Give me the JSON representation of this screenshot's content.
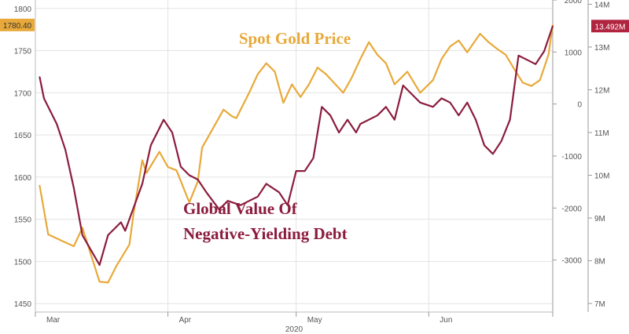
{
  "chart_data": {
    "type": "line",
    "x_range": [
      "2020-03-01",
      "2020-06-30"
    ],
    "x_ticks": [
      "Mar",
      "Apr",
      "May",
      "Jun"
    ],
    "x_year_label": "2020",
    "axes": {
      "left": {
        "min": 1440,
        "max": 1810,
        "ticks": [
          "1800",
          "1750",
          "1700",
          "1650",
          "1600",
          "1550",
          "1500",
          "1450"
        ]
      },
      "mid": {
        "min": -4000,
        "max": 2000,
        "ticks": [
          "2000",
          "1000",
          "0",
          "-1000",
          "-2000",
          "-3000"
        ]
      },
      "right": {
        "min": 6.8,
        "max": 14.1,
        "ticks": [
          "14M",
          "13M",
          "12M",
          "11M",
          "10M",
          "9M",
          "8M",
          "7M"
        ]
      }
    },
    "grid": true,
    "last_value_badges": {
      "gold": "1780.40",
      "debt": "13.492M"
    },
    "series": [
      {
        "name": "Spot Gold Price",
        "axis": "left",
        "color": "#e8a93a",
        "points": [
          [
            "2020-03-02",
            1590
          ],
          [
            "2020-03-04",
            1532
          ],
          [
            "2020-03-07",
            1525
          ],
          [
            "2020-03-10",
            1518
          ],
          [
            "2020-03-12",
            1540
          ],
          [
            "2020-03-16",
            1476
          ],
          [
            "2020-03-18",
            1475
          ],
          [
            "2020-03-20",
            1495
          ],
          [
            "2020-03-23",
            1520
          ],
          [
            "2020-03-24",
            1558
          ],
          [
            "2020-03-26",
            1620
          ],
          [
            "2020-03-27",
            1605
          ],
          [
            "2020-03-30",
            1630
          ],
          [
            "2020-04-01",
            1612
          ],
          [
            "2020-04-03",
            1608
          ],
          [
            "2020-04-06",
            1570
          ],
          [
            "2020-04-08",
            1595
          ],
          [
            "2020-04-09",
            1635
          ],
          [
            "2020-04-14",
            1680
          ],
          [
            "2020-04-16",
            1672
          ],
          [
            "2020-04-17",
            1670
          ],
          [
            "2020-04-20",
            1700
          ],
          [
            "2020-04-22",
            1722
          ],
          [
            "2020-04-24",
            1735
          ],
          [
            "2020-04-26",
            1725
          ],
          [
            "2020-04-28",
            1688
          ],
          [
            "2020-04-30",
            1710
          ],
          [
            "2020-05-02",
            1695
          ],
          [
            "2020-05-04",
            1710
          ],
          [
            "2020-05-06",
            1730
          ],
          [
            "2020-05-08",
            1722
          ],
          [
            "2020-05-12",
            1700
          ],
          [
            "2020-05-14",
            1718
          ],
          [
            "2020-05-16",
            1740
          ],
          [
            "2020-05-18",
            1760
          ],
          [
            "2020-05-20",
            1745
          ],
          [
            "2020-05-22",
            1735
          ],
          [
            "2020-05-24",
            1710
          ],
          [
            "2020-05-27",
            1725
          ],
          [
            "2020-05-30",
            1700
          ],
          [
            "2020-06-02",
            1715
          ],
          [
            "2020-06-04",
            1740
          ],
          [
            "2020-06-06",
            1755
          ],
          [
            "2020-06-08",
            1762
          ],
          [
            "2020-06-10",
            1748
          ],
          [
            "2020-06-13",
            1770
          ],
          [
            "2020-06-15",
            1760
          ],
          [
            "2020-06-17",
            1752
          ],
          [
            "2020-06-19",
            1745
          ],
          [
            "2020-06-21",
            1728
          ],
          [
            "2020-06-23",
            1712
          ],
          [
            "2020-06-25",
            1708
          ],
          [
            "2020-06-27",
            1715
          ],
          [
            "2020-06-29",
            1745
          ],
          [
            "2020-06-30",
            1780.4
          ]
        ]
      },
      {
        "name": "Global Value Of Negative-Yielding Debt",
        "axis": "right",
        "color": "#8b1c3d",
        "points": [
          [
            "2020-03-02",
            12.3
          ],
          [
            "2020-03-03",
            11.8
          ],
          [
            "2020-03-06",
            11.2
          ],
          [
            "2020-03-08",
            10.6
          ],
          [
            "2020-03-10",
            9.7
          ],
          [
            "2020-03-12",
            8.6
          ],
          [
            "2020-03-16",
            7.9
          ],
          [
            "2020-03-18",
            8.6
          ],
          [
            "2020-03-21",
            8.9
          ],
          [
            "2020-03-22",
            8.7
          ],
          [
            "2020-03-26",
            9.8
          ],
          [
            "2020-03-28",
            10.7
          ],
          [
            "2020-03-31",
            11.3
          ],
          [
            "2020-04-02",
            11.0
          ],
          [
            "2020-04-04",
            10.2
          ],
          [
            "2020-04-06",
            10.0
          ],
          [
            "2020-04-08",
            9.9
          ],
          [
            "2020-04-10",
            9.6
          ],
          [
            "2020-04-13",
            9.2
          ],
          [
            "2020-04-15",
            9.4
          ],
          [
            "2020-04-18",
            9.3
          ],
          [
            "2020-04-20",
            9.4
          ],
          [
            "2020-04-22",
            9.5
          ],
          [
            "2020-04-24",
            9.8
          ],
          [
            "2020-04-27",
            9.6
          ],
          [
            "2020-04-29",
            9.3
          ],
          [
            "2020-05-01",
            10.1
          ],
          [
            "2020-05-03",
            10.1
          ],
          [
            "2020-05-05",
            10.4
          ],
          [
            "2020-05-07",
            11.6
          ],
          [
            "2020-05-09",
            11.4
          ],
          [
            "2020-05-11",
            11.0
          ],
          [
            "2020-05-13",
            11.3
          ],
          [
            "2020-05-15",
            11.0
          ],
          [
            "2020-05-16",
            11.2
          ],
          [
            "2020-05-20",
            11.4
          ],
          [
            "2020-05-22",
            11.6
          ],
          [
            "2020-05-24",
            11.3
          ],
          [
            "2020-05-26",
            12.1
          ],
          [
            "2020-05-28",
            11.9
          ],
          [
            "2020-05-30",
            11.7
          ],
          [
            "2020-06-02",
            11.6
          ],
          [
            "2020-06-04",
            11.8
          ],
          [
            "2020-06-06",
            11.7
          ],
          [
            "2020-06-08",
            11.4
          ],
          [
            "2020-06-10",
            11.7
          ],
          [
            "2020-06-12",
            11.3
          ],
          [
            "2020-06-14",
            10.7
          ],
          [
            "2020-06-16",
            10.5
          ],
          [
            "2020-06-18",
            10.8
          ],
          [
            "2020-06-20",
            11.3
          ],
          [
            "2020-06-22",
            12.8
          ],
          [
            "2020-06-24",
            12.7
          ],
          [
            "2020-06-26",
            12.6
          ],
          [
            "2020-06-28",
            12.9
          ],
          [
            "2020-06-30",
            13.49
          ]
        ]
      }
    ]
  }
}
